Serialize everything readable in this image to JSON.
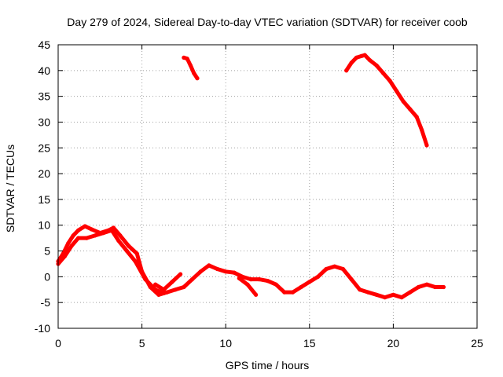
{
  "chart_data": {
    "type": "line",
    "title": "Day 279 of 2024, Sidereal Day-to-day VTEC variation (SDTVAR) for receiver coob",
    "xlabel": "GPS time / hours",
    "ylabel": "SDTVAR / TECUs",
    "xlim": [
      0,
      25
    ],
    "ylim": [
      -10,
      45
    ],
    "x_ticks": [
      0,
      5,
      10,
      15,
      20,
      25
    ],
    "y_ticks": [
      -10,
      -5,
      0,
      5,
      10,
      15,
      20,
      25,
      30,
      35,
      40,
      45
    ],
    "grid": true,
    "series_color": "#ff0000",
    "series": [
      {
        "name": "SDTVAR main",
        "points": [
          [
            0.0,
            3.0
          ],
          [
            0.3,
            4.5
          ],
          [
            0.6,
            6.5
          ],
          [
            0.9,
            8.0
          ],
          [
            1.2,
            9.0
          ],
          [
            1.6,
            9.8
          ],
          [
            2.0,
            9.2
          ],
          [
            2.5,
            8.5
          ],
          [
            3.0,
            9.0
          ],
          [
            3.3,
            9.5
          ],
          [
            3.7,
            8.0
          ],
          [
            4.2,
            6.0
          ],
          [
            4.7,
            4.5
          ],
          [
            5.0,
            1.0
          ],
          [
            5.5,
            -2.0
          ],
          [
            6.0,
            -3.5
          ],
          [
            6.5,
            -3.0
          ],
          [
            7.0,
            -2.5
          ],
          [
            7.5,
            -2.0
          ],
          [
            8.0,
            -0.5
          ],
          [
            8.5,
            1.0
          ],
          [
            9.0,
            2.2
          ],
          [
            9.5,
            1.5
          ],
          [
            10.0,
            1.0
          ],
          [
            10.5,
            0.8
          ],
          [
            11.0,
            0.0
          ],
          [
            11.5,
            -0.5
          ],
          [
            12.0,
            -0.5
          ],
          [
            12.5,
            -0.8
          ],
          [
            13.0,
            -1.5
          ],
          [
            13.5,
            -3.0
          ],
          [
            14.0,
            -3.0
          ],
          [
            14.5,
            -2.0
          ],
          [
            15.0,
            -1.0
          ],
          [
            15.5,
            0.0
          ],
          [
            16.0,
            1.5
          ],
          [
            16.5,
            2.0
          ],
          [
            17.0,
            1.5
          ],
          [
            17.5,
            -0.5
          ],
          [
            18.0,
            -2.5
          ],
          [
            18.5,
            -3.0
          ],
          [
            19.0,
            -3.5
          ],
          [
            19.5,
            -4.0
          ],
          [
            20.0,
            -3.5
          ],
          [
            20.5,
            -4.0
          ],
          [
            21.0,
            -3.0
          ],
          [
            21.5,
            -2.0
          ],
          [
            22.0,
            -1.5
          ],
          [
            22.5,
            -2.0
          ],
          [
            23.0,
            -2.0
          ]
        ]
      },
      {
        "name": "SDTVAR early spur",
        "points": [
          [
            0.0,
            2.5
          ],
          [
            0.4,
            4.0
          ],
          [
            0.8,
            6.0
          ],
          [
            1.2,
            7.5
          ],
          [
            1.7,
            7.5
          ],
          [
            2.2,
            8.0
          ],
          [
            2.7,
            8.5
          ],
          [
            3.2,
            9.0
          ],
          [
            3.6,
            7.0
          ],
          [
            4.1,
            5.0
          ],
          [
            4.6,
            3.0
          ],
          [
            5.2,
            -0.5
          ],
          [
            5.8,
            -2.5
          ],
          [
            6.3,
            -3.2
          ]
        ]
      },
      {
        "name": "SDTVAR short segment 1",
        "points": [
          [
            5.8,
            -1.5
          ],
          [
            6.3,
            -2.5
          ],
          [
            6.8,
            -1.0
          ],
          [
            7.3,
            0.5
          ]
        ]
      },
      {
        "name": "SDTVAR short segment 2",
        "points": [
          [
            10.8,
            -0.3
          ],
          [
            11.3,
            -1.5
          ],
          [
            11.8,
            -3.5
          ]
        ]
      },
      {
        "name": "SDTVAR high segment 1",
        "points": [
          [
            7.5,
            42.5
          ],
          [
            7.7,
            42.3
          ],
          [
            7.9,
            41.0
          ],
          [
            8.1,
            39.5
          ],
          [
            8.3,
            38.5
          ]
        ]
      },
      {
        "name": "SDTVAR high segment 2",
        "points": [
          [
            17.2,
            40.0
          ],
          [
            17.5,
            41.5
          ],
          [
            17.8,
            42.5
          ],
          [
            18.1,
            42.8
          ],
          [
            18.3,
            43.0
          ],
          [
            18.6,
            42.0
          ],
          [
            19.0,
            41.0
          ],
          [
            19.4,
            39.5
          ],
          [
            19.8,
            38.0
          ],
          [
            20.2,
            36.0
          ],
          [
            20.6,
            34.0
          ],
          [
            21.0,
            32.5
          ],
          [
            21.4,
            31.0
          ],
          [
            21.7,
            28.5
          ],
          [
            22.0,
            25.5
          ]
        ]
      }
    ]
  }
}
